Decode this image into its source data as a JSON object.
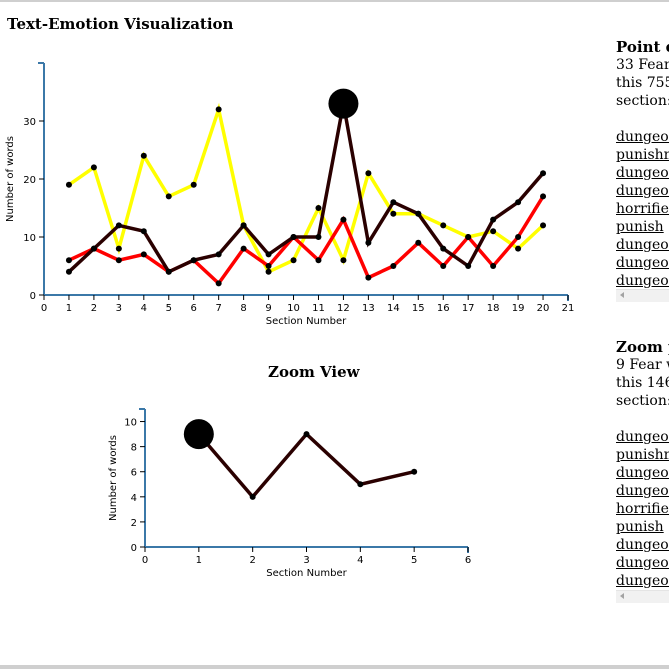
{
  "title": "Text-Emotion Visualization",
  "zoom_title": "Zoom View",
  "point_panel": {
    "heading": "Point da",
    "line1": "33 Fear",
    "line2": "this 755",
    "line3": "section:",
    "words": [
      "dungeon",
      "punishm",
      "dungeon",
      "dungeon",
      "horrified",
      "punish",
      "dungeon",
      "dungeon",
      "dungeon"
    ]
  },
  "zoom_panel": {
    "heading": "Zoom p",
    "line1": "9 Fear w",
    "line2": "this 146",
    "line3": "section:",
    "words": [
      "dungeon",
      "punishm",
      "dungeon",
      "dungeon",
      "horrified",
      "punish",
      "dungeon",
      "dungeon",
      "dungeon"
    ]
  },
  "chart_data": [
    {
      "type": "line",
      "xlabel": "Section Number",
      "ylabel": "Number of words",
      "xlim": [
        0,
        21
      ],
      "ylim": [
        0,
        40
      ],
      "xticks": [
        0,
        1,
        2,
        3,
        4,
        5,
        6,
        7,
        8,
        9,
        10,
        11,
        12,
        13,
        14,
        15,
        16,
        17,
        18,
        19,
        20,
        21
      ],
      "yticks": [
        0,
        10,
        20,
        30
      ],
      "x": [
        1,
        2,
        3,
        4,
        5,
        6,
        7,
        8,
        9,
        10,
        11,
        12,
        13,
        14,
        15,
        16,
        17,
        18,
        19,
        20
      ],
      "series": [
        {
          "color": "#ffff00",
          "values": [
            19,
            22,
            8,
            24,
            17,
            19,
            32,
            12,
            4,
            6,
            15,
            6,
            21,
            14,
            14,
            12,
            10,
            11,
            8,
            12
          ]
        },
        {
          "color": "#ff0000",
          "values": [
            6,
            8,
            6,
            7,
            4,
            6,
            2,
            8,
            5,
            10,
            6,
            13,
            3,
            5,
            9,
            5,
            10,
            5,
            10,
            17
          ]
        },
        {
          "color": "#2a0000",
          "values": [
            4,
            8,
            12,
            11,
            4,
            6,
            7,
            12,
            7,
            10,
            10,
            33,
            9,
            16,
            14,
            8,
            5,
            13,
            16,
            21
          ]
        }
      ],
      "highlight": {
        "series": 2,
        "x": 12,
        "y": 33
      }
    },
    {
      "type": "line",
      "xlabel": "Section Number",
      "ylabel": "Number of words",
      "xlim": [
        0,
        6
      ],
      "ylim": [
        0,
        11
      ],
      "xticks": [
        0,
        1,
        2,
        3,
        4,
        5,
        6
      ],
      "yticks": [
        0,
        2,
        4,
        6,
        8,
        10
      ],
      "x": [
        1,
        2,
        3,
        4,
        5
      ],
      "series": [
        {
          "color": "#2a0000",
          "values": [
            9,
            4,
            9,
            5,
            6
          ]
        }
      ],
      "highlight": {
        "series": 0,
        "x": 1,
        "y": 9
      }
    }
  ]
}
